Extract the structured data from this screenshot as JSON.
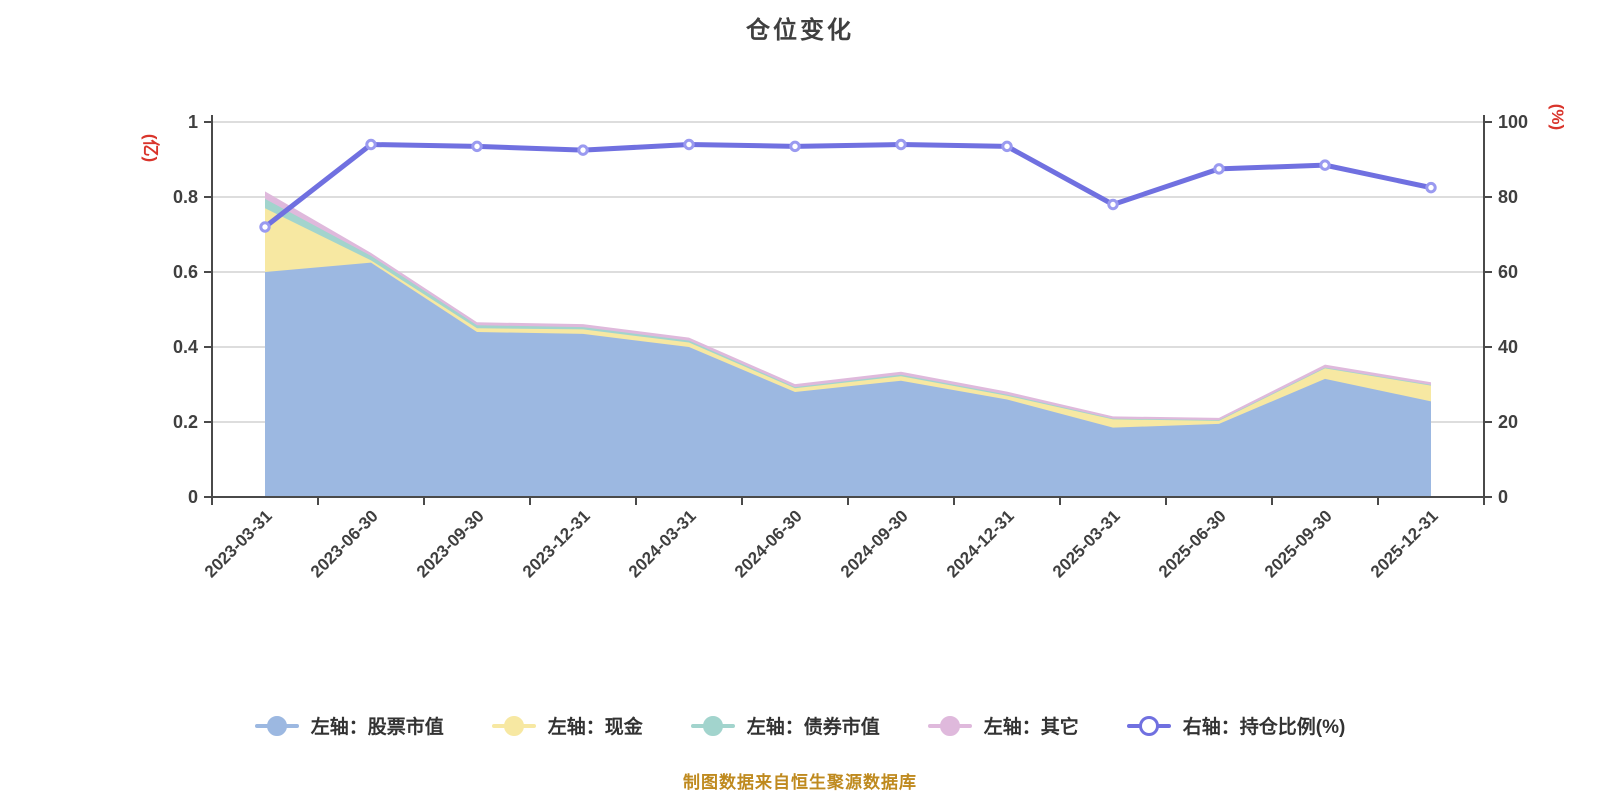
{
  "title": "仓位变化",
  "footer": "制图数据来自恒生聚源数据库",
  "colors": {
    "stock_area": "#9cb8e1",
    "cash_area": "#f7e8a2",
    "bond_area": "#a2d4cd",
    "other_area": "#dfb9dc",
    "ratio_line": "#7070e0",
    "ratio_dot_ring": "#9a9af0",
    "ratio_dot_fill": "#ffffff",
    "axis_name_red": "#d9342b",
    "grid_line": "#dddddd",
    "axis_line": "#4a4a4a",
    "tick_text": "#3f3f3f",
    "legend_text": "#333333",
    "footer_text": "#bf8a1f"
  },
  "left_axis": {
    "name": "(亿)",
    "ticks": [
      0,
      0.2,
      0.4,
      0.6,
      0.8,
      1
    ],
    "tick_labels": [
      "0",
      "0.2",
      "0.4",
      "0.6",
      "0.8",
      "1"
    ]
  },
  "right_axis": {
    "name": "(%)",
    "ticks": [
      0,
      20,
      40,
      60,
      80,
      100
    ],
    "tick_labels": [
      "0",
      "20",
      "40",
      "60",
      "80",
      "100"
    ]
  },
  "legend": [
    {
      "label": "左轴：股票市值",
      "color": "#9cb8e1",
      "marker": "filled"
    },
    {
      "label": "左轴：现金",
      "color": "#f7e8a2",
      "marker": "filled"
    },
    {
      "label": "左轴：债券市值",
      "color": "#a2d4cd",
      "marker": "filled"
    },
    {
      "label": "左轴：其它",
      "color": "#dfb9dc",
      "marker": "filled"
    },
    {
      "label": "右轴：持仓比例(%)",
      "color": "#7070e0",
      "marker": "hollow"
    }
  ],
  "chart_data": {
    "type": "area+line",
    "title": "仓位变化",
    "grid": true,
    "legend_position": "bottom",
    "left_ylim": [
      0,
      1
    ],
    "right_ylim": [
      0,
      100
    ],
    "left_axis_unit": "亿",
    "right_axis_unit": "%",
    "categories": [
      "2023-03-31",
      "2023-06-30",
      "2023-09-30",
      "2023-12-31",
      "2024-03-31",
      "2024-06-30",
      "2024-09-30",
      "2024-12-31",
      "2025-03-31",
      "2025-06-30",
      "2025-09-30",
      "2025-12-31"
    ],
    "series": [
      {
        "name": "左轴：股票市值",
        "type": "area",
        "axis": "left",
        "stack": true,
        "color": "#9cb8e1",
        "values": [
          0.6,
          0.625,
          0.44,
          0.435,
          0.4,
          0.28,
          0.31,
          0.26,
          0.185,
          0.195,
          0.315,
          0.255
        ]
      },
      {
        "name": "左轴：现金",
        "type": "area",
        "axis": "left",
        "stack": true,
        "color": "#f7e8a2",
        "values": [
          0.17,
          0.006,
          0.01,
          0.012,
          0.012,
          0.01,
          0.012,
          0.01,
          0.022,
          0.008,
          0.028,
          0.042
        ]
      },
      {
        "name": "左轴：债券市值",
        "type": "area",
        "axis": "left",
        "stack": true,
        "color": "#a2d4cd",
        "values": [
          0.025,
          0.012,
          0.008,
          0.006,
          0.005,
          0.003,
          0.004,
          0.003,
          0.002,
          0.002,
          0.002,
          0.002
        ]
      },
      {
        "name": "左轴：其它",
        "type": "area",
        "axis": "left",
        "stack": true,
        "color": "#dfb9dc",
        "values": [
          0.02,
          0.008,
          0.008,
          0.008,
          0.008,
          0.008,
          0.008,
          0.008,
          0.006,
          0.006,
          0.008,
          0.007
        ]
      },
      {
        "name": "右轴：持仓比例(%)",
        "type": "line",
        "axis": "right",
        "color": "#7070e0",
        "values": [
          72,
          94,
          93.5,
          92.5,
          94,
          93.5,
          94,
          93.5,
          78,
          87.5,
          88.5,
          82.5
        ]
      }
    ]
  }
}
